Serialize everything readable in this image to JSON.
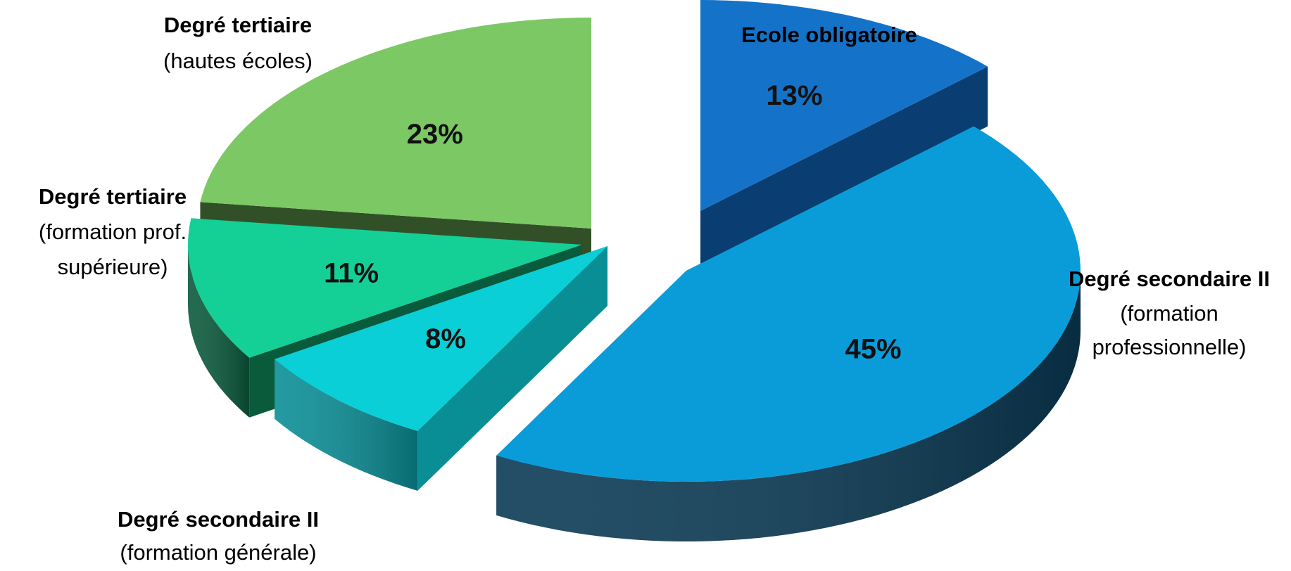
{
  "chart_data": {
    "type": "pie",
    "title": "",
    "legend": "none (labels beside slices)",
    "slices": [
      {
        "label": "Ecole obligatoire",
        "sublabel": "",
        "value": 13,
        "value_label": "13%",
        "color": "#1473C8",
        "side_color": "#0A3E73"
      },
      {
        "label": "Degré secondaire II",
        "sublabel": "(formation professionnelle)",
        "sublabel_lines": [
          "(formation",
          "professionnelle)"
        ],
        "value": 45,
        "value_label": "45%",
        "color": "#0A9CD8",
        "side_color": "#0A3A55"
      },
      {
        "label": "Degré secondaire II",
        "sublabel": "(formation générale)",
        "sublabel_lines": [
          "(formation générale)"
        ],
        "value": 8,
        "value_label": "8%",
        "color": "#0ACFD6",
        "side_color": "#0A8E96"
      },
      {
        "label": "Degré tertiaire",
        "sublabel": "(formation prof. supérieure)",
        "sublabel_lines": [
          "(formation prof.",
          "supérieure)"
        ],
        "value": 11,
        "value_label": "11%",
        "color": "#14CF96",
        "side_color": "#0A5A3C"
      },
      {
        "label": "Degré tertiaire",
        "sublabel": "(hautes écoles)",
        "sublabel_lines": [
          "(hautes écoles)"
        ],
        "value": 23,
        "value_label": "23%",
        "color": "#7CC864",
        "side_color": "#325028"
      }
    ]
  }
}
